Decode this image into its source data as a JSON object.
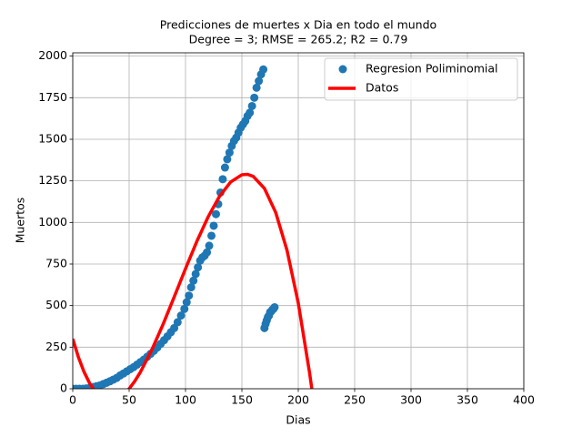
{
  "chart_data": {
    "type": "scatter",
    "title": "Predicciones de muertes x Dia en todo el mundo",
    "subtitle": "Degree = 3; RMSE = 265.2; R2 = 0.79",
    "x_label": "Dias",
    "y_label": "Muertos",
    "xlim": [
      0,
      400
    ],
    "xticks": [
      0,
      50,
      100,
      150,
      200,
      250,
      300,
      350,
      400
    ],
    "ylim": [
      0,
      2020
    ],
    "yticks": [
      0,
      250,
      500,
      750,
      1000,
      1250,
      1500,
      1750,
      2000
    ],
    "grid": true,
    "legend": "upper right",
    "series": [
      {
        "name": "Regresion Poliminomial",
        "type": "scatter",
        "color": "#1f77b4",
        "x": [
          0,
          3,
          6,
          9,
          12,
          15,
          18,
          21,
          24,
          27,
          30,
          33,
          36,
          39,
          42,
          45,
          48,
          51,
          54,
          57,
          60,
          63,
          66,
          69,
          72,
          75,
          78,
          81,
          84,
          87,
          90,
          93,
          96,
          99,
          101,
          103,
          105,
          107,
          109,
          111,
          113,
          115,
          117,
          119,
          121,
          123,
          125,
          127,
          129,
          131,
          133,
          135,
          137,
          139,
          141,
          143,
          145,
          147,
          149,
          151,
          153,
          155,
          157,
          159,
          161,
          163,
          165,
          167,
          169,
          170,
          171,
          172,
          173,
          174,
          175,
          176,
          177,
          178,
          179
        ],
        "values": [
          0,
          0,
          0,
          0,
          2,
          5,
          10,
          15,
          20,
          28,
          36,
          45,
          55,
          65,
          80,
          92,
          105,
          118,
          130,
          145,
          160,
          175,
          192,
          210,
          228,
          248,
          270,
          292,
          315,
          340,
          365,
          400,
          440,
          480,
          520,
          560,
          610,
          650,
          690,
          730,
          770,
          790,
          800,
          820,
          860,
          920,
          980,
          1050,
          1110,
          1180,
          1260,
          1330,
          1380,
          1420,
          1460,
          1490,
          1510,
          1540,
          1570,
          1590,
          1610,
          1640,
          1660,
          1700,
          1750,
          1810,
          1850,
          1890,
          1920,
          365,
          390,
          410,
          430,
          440,
          460,
          465,
          475,
          480,
          490
        ]
      },
      {
        "name": "Datos",
        "type": "line",
        "color": "#ff0000",
        "x": [
          0,
          5,
          10,
          15,
          20,
          25,
          30,
          35,
          40,
          45,
          50,
          55,
          60,
          70,
          80,
          90,
          100,
          110,
          120,
          130,
          140,
          150,
          155,
          160,
          170,
          180,
          190,
          200,
          210,
          212
        ],
        "values": [
          300,
          190.4,
          101.6,
          32.5,
          -18.1,
          -51.5,
          -68.7,
          -71.0,
          -59.5,
          -35.4,
          0,
          45.7,
          100.4,
          232.2,
          386.0,
          552.4,
          722.0,
          885.3,
          1032.8,
          1155.2,
          1243.0,
          1286.8,
          1289,
          1277.1,
          1204.5,
          1059.6,
          832.9,
          515.1,
          96.6,
          0
        ]
      }
    ]
  }
}
